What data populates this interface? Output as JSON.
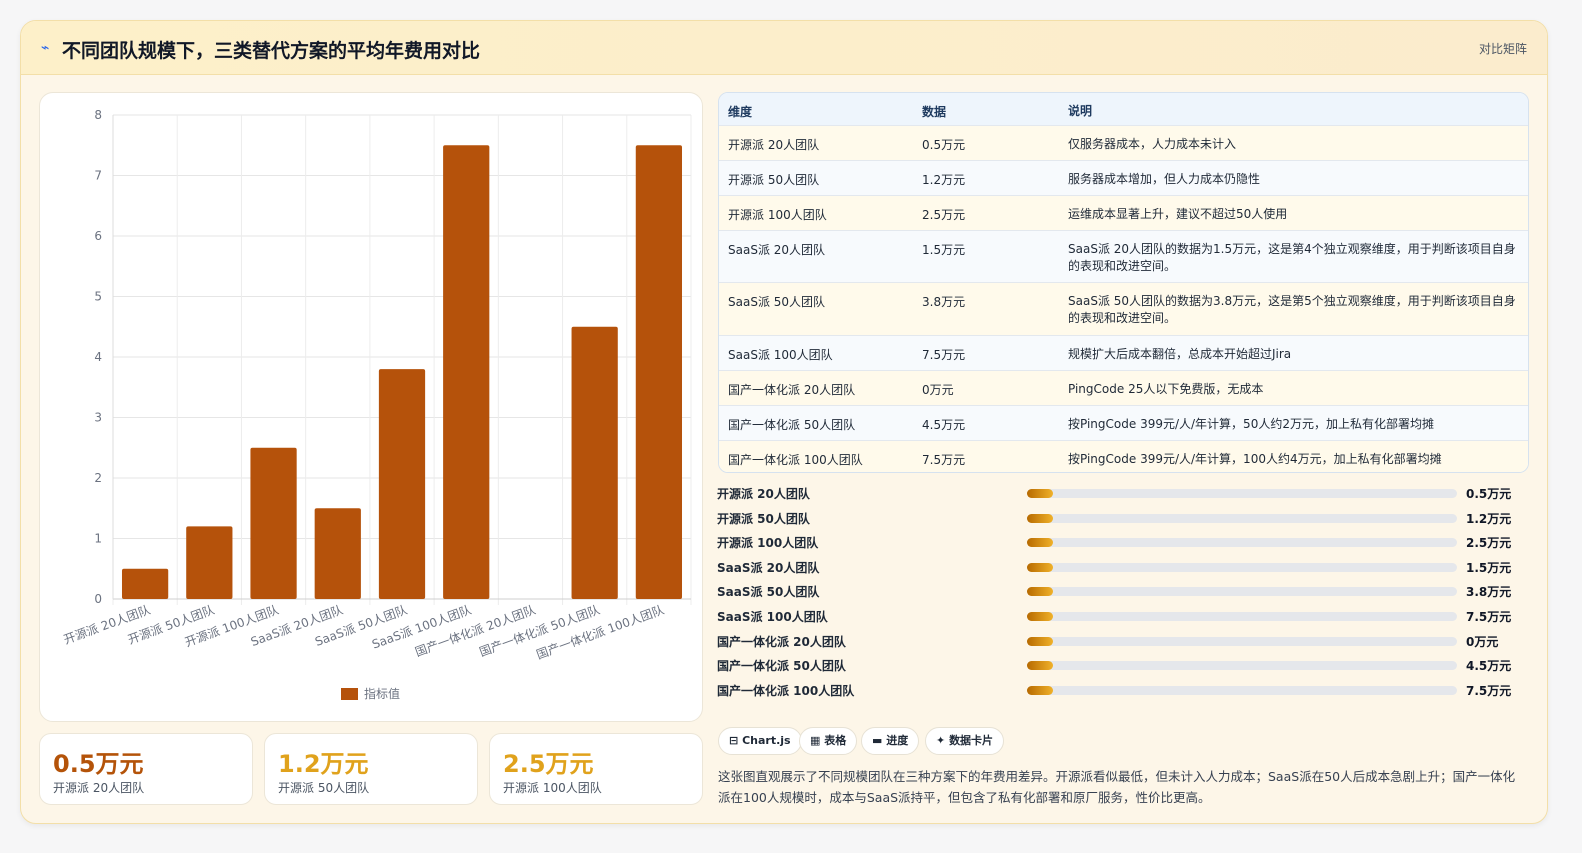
{
  "header": {
    "title": "不同团队规模下，三类替代方案的平均年费用对比",
    "tag": "对比矩阵",
    "icon": "trend-line-icon"
  },
  "chart_data": {
    "type": "bar",
    "categories": [
      "开源派 20人团队",
      "开源派 50人团队",
      "开源派 100人团队",
      "SaaS派 20人团队",
      "SaaS派 50人团队",
      "SaaS派 100人团队",
      "国产一体化派 20人团队",
      "国产一体化派 50人团队",
      "国产一体化派 100人团队"
    ],
    "series": [
      {
        "name": "指标值",
        "values": [
          0.5,
          1.2,
          2.5,
          1.5,
          3.8,
          7.5,
          0,
          4.5,
          7.5
        ]
      }
    ],
    "yticks": [
      "0",
      "1",
      "2",
      "3",
      "4",
      "5",
      "6",
      "7",
      "8"
    ],
    "ylim": [
      0,
      8
    ],
    "grid": true,
    "legend": "bottom",
    "color": "#b5520b"
  },
  "kpis": [
    {
      "value": "0.5万元",
      "label": "开源派 20人团队",
      "color": "#b45309"
    },
    {
      "value": "1.2万元",
      "label": "开源派 50人团队",
      "color": "#e0a21c"
    },
    {
      "value": "2.5万元",
      "label": "开源派 100人团队",
      "color": "#e0a21c"
    }
  ],
  "table": {
    "headers": [
      "维度",
      "数据",
      "说明"
    ],
    "rows": [
      {
        "dim": "开源派 20人团队",
        "val": "0.5万元",
        "note": "仅服务器成本，人力成本未计入"
      },
      {
        "dim": "开源派 50人团队",
        "val": "1.2万元",
        "note": "服务器成本增加，但人力成本仍隐性"
      },
      {
        "dim": "开源派 100人团队",
        "val": "2.5万元",
        "note": "运维成本显著上升，建议不超过50人使用"
      },
      {
        "dim": "SaaS派 20人团队",
        "val": "1.5万元",
        "note": "SaaS派 20人团队的数据为1.5万元，这是第4个独立观察维度，用于判断该项目自身的表现和改进空间。"
      },
      {
        "dim": "SaaS派 50人团队",
        "val": "3.8万元",
        "note": "SaaS派 50人团队的数据为3.8万元，这是第5个独立观察维度，用于判断该项目自身的表现和改进空间。"
      },
      {
        "dim": "SaaS派 100人团队",
        "val": "7.5万元",
        "note": "规模扩大后成本翻倍，总成本开始超过Jira"
      },
      {
        "dim": "国产一体化派 20人团队",
        "val": "0万元",
        "note": "PingCode 25人以下免费版，无成本"
      },
      {
        "dim": "国产一体化派 50人团队",
        "val": "4.5万元",
        "note": "按PingCode 399元/人/年计算，50人约2万元，加上私有化部署均摊"
      },
      {
        "dim": "国产一体化派 100人团队",
        "val": "7.5万元",
        "note": "按PingCode 399元/人/年计算，100人约4万元，加上私有化部署均摊"
      }
    ]
  },
  "progress": [
    {
      "label": "开源派 20人团队",
      "value": "0.5万元",
      "fill": 0.06
    },
    {
      "label": "开源派 50人团队",
      "value": "1.2万元",
      "fill": 0.06
    },
    {
      "label": "开源派 100人团队",
      "value": "2.5万元",
      "fill": 0.06
    },
    {
      "label": "SaaS派 20人团队",
      "value": "1.5万元",
      "fill": 0.06
    },
    {
      "label": "SaaS派 50人团队",
      "value": "3.8万元",
      "fill": 0.06
    },
    {
      "label": "SaaS派 100人团队",
      "value": "7.5万元",
      "fill": 0.06
    },
    {
      "label": "国产一体化派 20人团队",
      "value": "0万元",
      "fill": 0.06
    },
    {
      "label": "国产一体化派 50人团队",
      "value": "4.5万元",
      "fill": 0.06
    },
    {
      "label": "国产一体化派 100人团队",
      "value": "7.5万元",
      "fill": 0.06
    }
  ],
  "pills": [
    {
      "icon": "chart-icon",
      "glyph": "⊟",
      "label": "Chart.js"
    },
    {
      "icon": "table-icon",
      "glyph": "▦",
      "label": "表格"
    },
    {
      "icon": "progress-icon",
      "glyph": "▬",
      "label": "进度"
    },
    {
      "icon": "sparkle-icon",
      "glyph": "✦",
      "label": "数据卡片"
    }
  ],
  "summary": "这张图直观展示了不同规模团队在三种方案下的年费用差异。开源派看似最低，但未计入人力成本；SaaS派在50人后成本急剧上升；国产一体化派在100人规模时，成本与SaaS派持平，但包含了私有化部署和原厂服务，性价比更高。"
}
